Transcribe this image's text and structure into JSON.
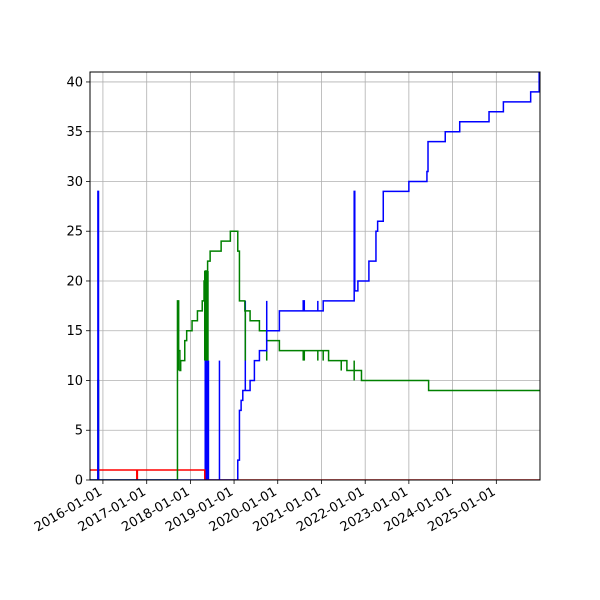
{
  "chart_data": {
    "type": "line",
    "title": "",
    "xlabel": "",
    "ylabel": "",
    "x_axis_type": "date",
    "xlim": [
      "2015-09-15",
      "2026-01-01"
    ],
    "ylim": [
      0,
      41
    ],
    "grid": true,
    "legend": "none",
    "x_tick_labels": [
      "2016-01-01",
      "2017-01-01",
      "2018-01-01",
      "2019-01-01",
      "2020-01-01",
      "2021-01-01",
      "2022-01-01",
      "2023-01-01",
      "2024-01-01",
      "2025-01-01"
    ],
    "y_ticks": [
      0,
      5,
      10,
      15,
      20,
      25,
      30,
      35,
      40
    ],
    "series": [
      {
        "color": "#ff0000",
        "points": [
          [
            "2015-09-15",
            1
          ],
          [
            "2015-11-20",
            1
          ],
          [
            "2015-11-20",
            0
          ],
          [
            "2015-11-25",
            0
          ],
          [
            "2015-11-25",
            1
          ],
          [
            "2016-10-10",
            1
          ],
          [
            "2016-10-10",
            0
          ],
          [
            "2016-10-15",
            0
          ],
          [
            "2016-10-15",
            1
          ],
          [
            "2018-05-01",
            1
          ],
          [
            "2018-05-01",
            0
          ],
          [
            "2026-01-01",
            0
          ]
        ]
      },
      {
        "color": "#008000",
        "points": [
          [
            "2015-09-15",
            0
          ],
          [
            "2015-11-20",
            0
          ],
          [
            "2015-11-20",
            10
          ],
          [
            "2015-11-25",
            10
          ],
          [
            "2015-11-25",
            0
          ],
          [
            "2017-09-15",
            0
          ],
          [
            "2017-09-15",
            18
          ],
          [
            "2017-09-25",
            18
          ],
          [
            "2017-09-25",
            13
          ],
          [
            "2017-10-05",
            13
          ],
          [
            "2017-10-05",
            11
          ],
          [
            "2017-10-12",
            11
          ],
          [
            "2017-10-12",
            12
          ],
          [
            "2017-11-15",
            12
          ],
          [
            "2017-11-15",
            14
          ],
          [
            "2017-12-01",
            14
          ],
          [
            "2017-12-01",
            15
          ],
          [
            "2018-01-15",
            15
          ],
          [
            "2018-01-15",
            16
          ],
          [
            "2018-03-01",
            16
          ],
          [
            "2018-03-01",
            17
          ],
          [
            "2018-04-10",
            17
          ],
          [
            "2018-04-10",
            18
          ],
          [
            "2018-04-25",
            18
          ],
          [
            "2018-04-25",
            20
          ],
          [
            "2018-05-05",
            20
          ],
          [
            "2018-05-05",
            21
          ],
          [
            "2018-05-20",
            21
          ],
          [
            "2018-05-20",
            19
          ],
          [
            "2018-05-25",
            19
          ],
          [
            "2018-05-25",
            22
          ],
          [
            "2018-06-15",
            22
          ],
          [
            "2018-06-15",
            23
          ],
          [
            "2018-09-15",
            23
          ],
          [
            "2018-09-15",
            24
          ],
          [
            "2018-12-01",
            24
          ],
          [
            "2018-12-01",
            25
          ],
          [
            "2019-02-01",
            25
          ],
          [
            "2019-02-01",
            23
          ],
          [
            "2019-02-15",
            23
          ],
          [
            "2019-02-15",
            18
          ],
          [
            "2019-04-01",
            18
          ],
          [
            "2019-04-01",
            17
          ],
          [
            "2019-05-15",
            17
          ],
          [
            "2019-05-15",
            16
          ],
          [
            "2019-08-01",
            16
          ],
          [
            "2019-08-01",
            15
          ],
          [
            "2019-10-01",
            15
          ],
          [
            "2019-10-01",
            14
          ],
          [
            "2020-01-15",
            14
          ],
          [
            "2020-01-15",
            13
          ],
          [
            "2021-03-01",
            13
          ],
          [
            "2021-03-01",
            12
          ],
          [
            "2021-08-01",
            12
          ],
          [
            "2021-08-01",
            11
          ],
          [
            "2021-12-01",
            11
          ],
          [
            "2021-12-01",
            10
          ],
          [
            "2023-06-15",
            10
          ],
          [
            "2023-06-15",
            9
          ],
          [
            "2026-01-01",
            9
          ]
        ]
      },
      {
        "color": "#0000ff",
        "points": [
          [
            "2015-09-15",
            0
          ],
          [
            "2015-11-20",
            0
          ],
          [
            "2015-11-20",
            29
          ],
          [
            "2015-11-25",
            29
          ],
          [
            "2015-11-25",
            0
          ],
          [
            "2019-02-01",
            0
          ],
          [
            "2019-02-01",
            2
          ],
          [
            "2019-02-15",
            2
          ],
          [
            "2019-02-15",
            7
          ],
          [
            "2019-03-01",
            7
          ],
          [
            "2019-03-01",
            8
          ],
          [
            "2019-03-15",
            8
          ],
          [
            "2019-03-15",
            9
          ],
          [
            "2019-05-15",
            9
          ],
          [
            "2019-05-15",
            10
          ],
          [
            "2019-06-20",
            10
          ],
          [
            "2019-06-20",
            12
          ],
          [
            "2019-08-01",
            12
          ],
          [
            "2019-08-01",
            13
          ],
          [
            "2019-10-01",
            13
          ],
          [
            "2019-10-01",
            15
          ],
          [
            "2020-01-15",
            15
          ],
          [
            "2020-01-15",
            17
          ],
          [
            "2020-08-01",
            17
          ],
          [
            "2020-08-01",
            18
          ],
          [
            "2020-08-10",
            18
          ],
          [
            "2020-08-10",
            17
          ],
          [
            "2021-01-15",
            17
          ],
          [
            "2021-01-15",
            18
          ],
          [
            "2021-10-01",
            18
          ],
          [
            "2021-10-01",
            29
          ],
          [
            "2021-10-06",
            29
          ],
          [
            "2021-10-06",
            19
          ],
          [
            "2021-11-01",
            19
          ],
          [
            "2021-11-01",
            20
          ],
          [
            "2022-02-01",
            20
          ],
          [
            "2022-02-01",
            22
          ],
          [
            "2022-04-01",
            22
          ],
          [
            "2022-04-01",
            25
          ],
          [
            "2022-04-15",
            25
          ],
          [
            "2022-04-15",
            26
          ],
          [
            "2022-06-01",
            26
          ],
          [
            "2022-06-01",
            29
          ],
          [
            "2023-01-01",
            29
          ],
          [
            "2023-01-01",
            30
          ],
          [
            "2023-06-01",
            30
          ],
          [
            "2023-06-01",
            31
          ],
          [
            "2023-06-10",
            31
          ],
          [
            "2023-06-10",
            34
          ],
          [
            "2023-11-01",
            34
          ],
          [
            "2023-11-01",
            35
          ],
          [
            "2024-03-01",
            35
          ],
          [
            "2024-03-01",
            36
          ],
          [
            "2024-11-01",
            36
          ],
          [
            "2024-11-01",
            37
          ],
          [
            "2025-03-01",
            37
          ],
          [
            "2025-03-01",
            38
          ],
          [
            "2025-10-15",
            38
          ],
          [
            "2025-10-15",
            39
          ],
          [
            "2025-12-25",
            39
          ],
          [
            "2025-12-25",
            41
          ]
        ]
      }
    ],
    "spikes": [
      {
        "color": "#0000ff",
        "x": [
          "2018-05-05",
          "2018-05-10",
          "2018-05-15",
          "2018-05-20",
          "2018-05-25",
          "2018-06-01"
        ],
        "bottom": 0,
        "top": 12
      },
      {
        "color": "#0000ff",
        "x": [
          "2018-09-01"
        ],
        "bottom": 0,
        "top": 12
      },
      {
        "color": "#0000ff",
        "x": [
          "2019-04-05"
        ],
        "bottom": 9,
        "top": 18
      },
      {
        "color": "#0000ff",
        "x": [
          "2019-10-01"
        ],
        "bottom": 15,
        "top": 18
      },
      {
        "color": "#0000ff",
        "x": [
          "2020-12-01"
        ],
        "bottom": 17,
        "top": 18
      },
      {
        "color": "#008000",
        "x": [
          "2017-09-18",
          "2017-09-22"
        ],
        "bottom": 11,
        "top": 18
      },
      {
        "color": "#008000",
        "x": [
          "2018-05-01",
          "2018-05-08",
          "2018-05-14",
          "2018-05-20",
          "2018-05-28"
        ],
        "bottom": 12,
        "top": 21
      },
      {
        "color": "#008000",
        "x": [
          "2019-04-05"
        ],
        "bottom": 12,
        "top": 17
      },
      {
        "color": "#008000",
        "x": [
          "2019-10-01"
        ],
        "bottom": 12,
        "top": 15
      },
      {
        "color": "#008000",
        "x": [
          "2020-08-01",
          "2020-08-10"
        ],
        "bottom": 12,
        "top": 13
      },
      {
        "color": "#008000",
        "x": [
          "2020-12-01",
          "2021-01-15"
        ],
        "bottom": 12,
        "top": 13
      },
      {
        "color": "#008000",
        "x": [
          "2021-06-15"
        ],
        "bottom": 11,
        "top": 12
      },
      {
        "color": "#008000",
        "x": [
          "2021-10-01"
        ],
        "bottom": 10,
        "top": 12
      }
    ]
  }
}
